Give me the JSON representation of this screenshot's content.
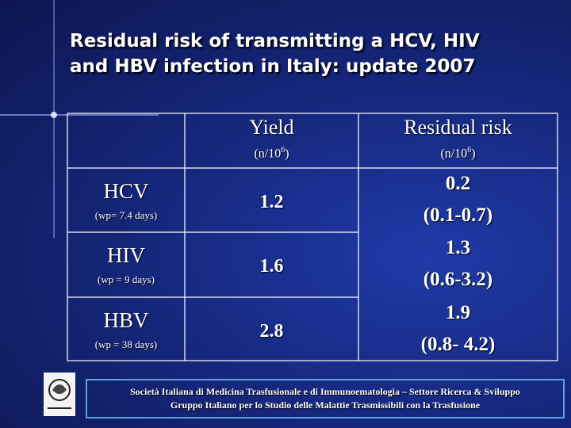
{
  "title": {
    "lines": [
      "Residual risk of transmitting a HCV, HIV",
      "and HBV infection in Italy: update  2007"
    ]
  },
  "table": {
    "header": [
      {
        "label": "Yield",
        "unit": {
          "base": "(n/10",
          "exp": "6",
          "close": ")"
        }
      },
      {
        "label": "Residual risk",
        "unit": {
          "base": "(n/10",
          "exp": "6",
          "close": ")"
        }
      }
    ],
    "rows": [
      {
        "name": "HCV",
        "window": "(wp= 7.4 days)",
        "yield": "1.2",
        "risk": "0.2",
        "range": "(0.1-0.7)"
      },
      {
        "name": "HIV",
        "window": "(wp = 9 days)",
        "yield": "1.6",
        "risk": "1.3",
        "range": "(0.6-3.2)"
      },
      {
        "name": "HBV",
        "window": "(wp = 38 days)",
        "yield": "2.8",
        "risk": "1.9",
        "range": "(0.8- 4.2)"
      }
    ]
  },
  "footer": {
    "lines": [
      "Società Italiana di Medicina Trasfusionale e di Immunoematologia – Settore Ricerca & Sviluppo",
      "Gruppo Italiano per lo Studio delle Malattie Trasmissibili con la Trasfusione"
    ]
  }
}
